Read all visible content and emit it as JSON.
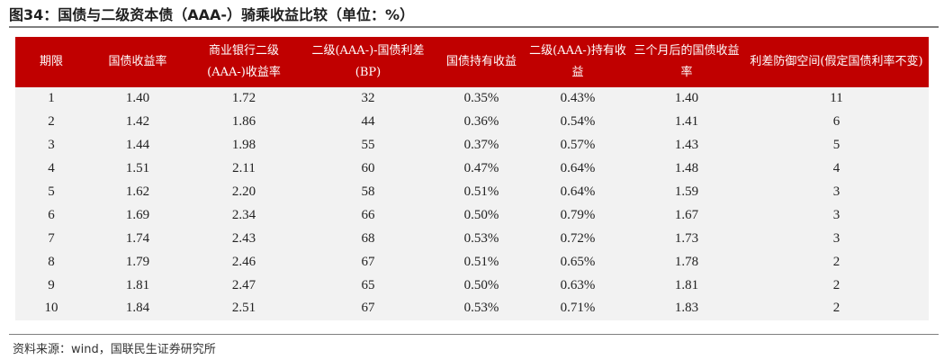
{
  "title": "图34：国债与二级资本债（AAA-）骑乘收益比较（单位：%）",
  "source": "资料来源：wind，国联民生证券研究所",
  "colors": {
    "header_bg": "#c00000",
    "table_bg": "#f2f2f2"
  },
  "table": {
    "headers": [
      "期限",
      "国债收益率",
      "商业银行二级(AAA-)收益率",
      "二级(AAA-)-国债利差(BP)",
      "国债持有收益",
      "二级(AAA-)持有收益",
      "三个月后的国债收益率",
      "利差防御空间(假定国债利率不变)"
    ],
    "rows": [
      [
        "1",
        "1.40",
        "1.72",
        "32",
        "0.35%",
        "0.43%",
        "1.40",
        "11"
      ],
      [
        "2",
        "1.42",
        "1.86",
        "44",
        "0.36%",
        "0.54%",
        "1.41",
        "6"
      ],
      [
        "3",
        "1.44",
        "1.98",
        "55",
        "0.37%",
        "0.57%",
        "1.43",
        "5"
      ],
      [
        "4",
        "1.51",
        "2.11",
        "60",
        "0.47%",
        "0.64%",
        "1.48",
        "4"
      ],
      [
        "5",
        "1.62",
        "2.20",
        "58",
        "0.51%",
        "0.64%",
        "1.59",
        "3"
      ],
      [
        "6",
        "1.69",
        "2.34",
        "66",
        "0.50%",
        "0.79%",
        "1.67",
        "3"
      ],
      [
        "7",
        "1.74",
        "2.43",
        "68",
        "0.53%",
        "0.72%",
        "1.73",
        "3"
      ],
      [
        "8",
        "1.79",
        "2.46",
        "67",
        "0.51%",
        "0.65%",
        "1.78",
        "2"
      ],
      [
        "9",
        "1.81",
        "2.47",
        "65",
        "0.50%",
        "0.63%",
        "1.81",
        "2"
      ],
      [
        "10",
        "1.84",
        "2.51",
        "67",
        "0.53%",
        "0.71%",
        "1.83",
        "2"
      ]
    ]
  }
}
